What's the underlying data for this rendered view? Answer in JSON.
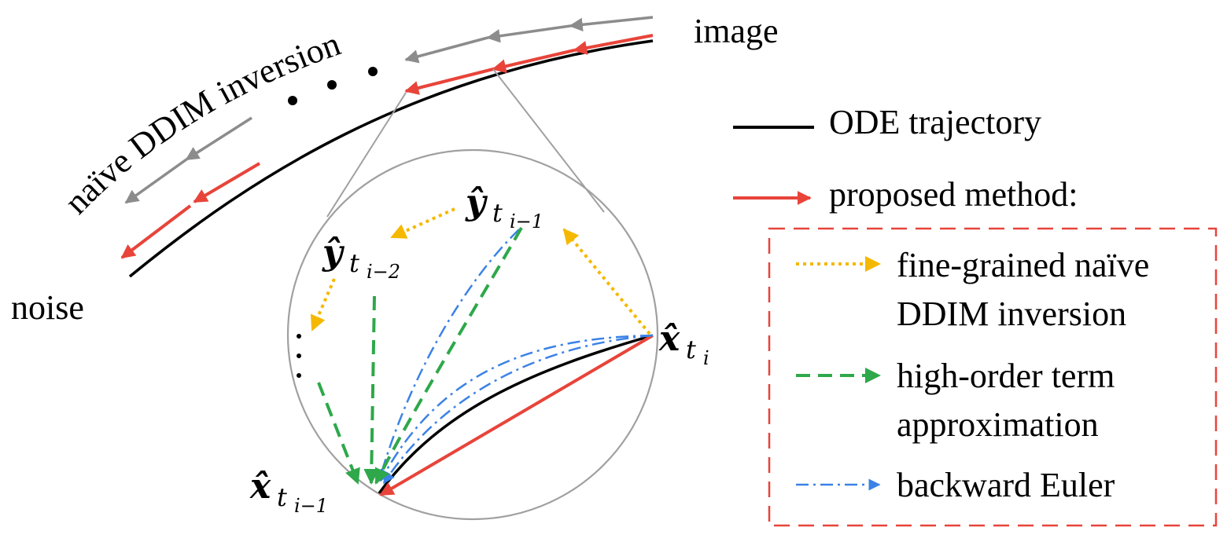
{
  "labels": {
    "image": "image",
    "noise": "noise",
    "naive_inversion": "naïve DDIM inversion"
  },
  "legend": {
    "ode": "ODE trajectory",
    "proposed": "proposed method:",
    "fine_grained_line1": "fine-grained naïve",
    "fine_grained_line2": "DDIM inversion",
    "high_order_line1": "high-order term",
    "high_order_line2": "approximation",
    "backward_euler": "backward Euler"
  },
  "math": {
    "y_i_minus_1": {
      "base": "ŷ",
      "sub": "t",
      "subsub": "i−1"
    },
    "y_i_minus_2": {
      "base": "ŷ",
      "sub": "t",
      "subsub": "i−2"
    },
    "x_i": {
      "base": "x̂",
      "sub": "t",
      "subsub": "i"
    },
    "x_i_minus_1": {
      "base": "x̂",
      "sub": "t",
      "subsub": "i−1"
    }
  },
  "colors": {
    "ode": "#000000",
    "proposed": "#e8443a",
    "naive": "#8c8c8c",
    "fine_grained": "#f5b800",
    "high_order": "#2ea84a",
    "backward_euler": "#3b82e6",
    "legend_box": "#e8443a",
    "zoom": "#a0a0a0"
  }
}
